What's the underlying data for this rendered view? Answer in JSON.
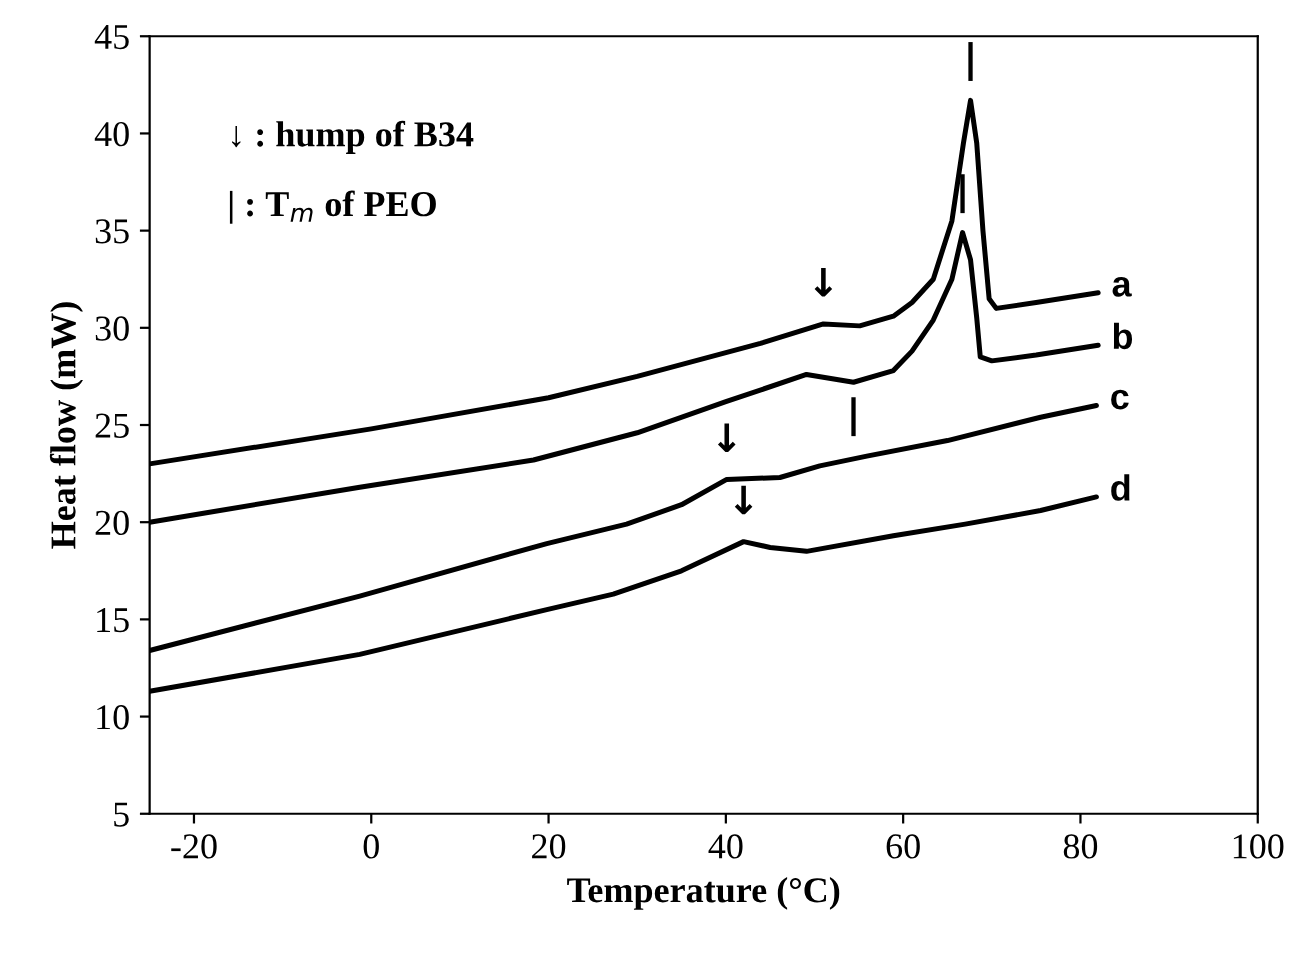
{
  "chart_data": {
    "type": "line",
    "xlabel": "Temperature (°C)",
    "ylabel": "Heat flow (mW)",
    "xlim": [
      -25,
      100
    ],
    "xticks": [
      -20,
      0,
      20,
      40,
      60,
      80,
      100
    ],
    "ylim": [
      5,
      45
    ],
    "yticks": [
      5,
      10,
      15,
      20,
      25,
      30,
      35,
      40,
      45
    ],
    "grid": false,
    "legend": false,
    "marker": "none",
    "line_style": "solid",
    "series": [
      {
        "name": "a",
        "color": "#000000",
        "x": [
          -25,
          0,
          20,
          30,
          43.9,
          51,
          55.1,
          58.9,
          61,
          63.4,
          65.5,
          66.8,
          67.6,
          68.3,
          69,
          69.7,
          70.5,
          75,
          82
        ],
        "values": [
          23.0,
          24.8,
          26.4,
          27.5,
          29.2,
          30.2,
          30.1,
          30.6,
          31.3,
          32.5,
          35.5,
          39.5,
          41.7,
          39.5,
          35,
          31.5,
          31.0,
          31.3,
          31.8
        ]
      },
      {
        "name": "b",
        "color": "#000000",
        "x": [
          -25,
          -1.3,
          18.3,
          30,
          40,
          49.1,
          54.4,
          58.9,
          61,
          63.4,
          65.5,
          66.7,
          67.6,
          68.3,
          68.7,
          70,
          75,
          82
        ],
        "values": [
          20.0,
          21.8,
          23.2,
          24.6,
          26.2,
          27.6,
          27.2,
          27.8,
          28.8,
          30.4,
          32.5,
          34.9,
          33.5,
          30.5,
          28.5,
          28.3,
          28.6,
          29.1
        ]
      },
      {
        "name": "c",
        "color": "#000000",
        "x": [
          -25,
          -1.3,
          19.8,
          28.8,
          35,
          40.1,
          46.1,
          50.6,
          55.9,
          65,
          75.5,
          81.8
        ],
        "values": [
          13.4,
          16.2,
          18.9,
          19.9,
          20.9,
          22.2,
          22.3,
          22.9,
          23.4,
          24.2,
          25.4,
          26.0
        ]
      },
      {
        "name": "d",
        "color": "#000000",
        "x": [
          -25,
          -1.3,
          19.8,
          27.3,
          35,
          42,
          45,
          49.1,
          58.9,
          67,
          75.5,
          81.8
        ],
        "values": [
          11.3,
          13.2,
          15.5,
          16.3,
          17.5,
          19.0,
          18.7,
          18.5,
          19.3,
          19.9,
          20.6,
          21.3
        ]
      }
    ],
    "annotations": [
      "↓ : hump of B34",
      "| : T$_{m}$ of PEO",
      {
        "text": "↓",
        "x": 51,
        "y": 30.2
      },
      {
        "text": "↓",
        "x": 40.1,
        "y": 22.2
      },
      {
        "text": "↓",
        "x": 42,
        "y": 19.0
      },
      {
        "text": "|",
        "x": 67.6,
        "y": 41.7
      },
      {
        "text": "|",
        "x": 66.7,
        "y": 34.9
      },
      {
        "text": "|",
        "x": 54.4,
        "y": 27.0
      }
    ]
  }
}
